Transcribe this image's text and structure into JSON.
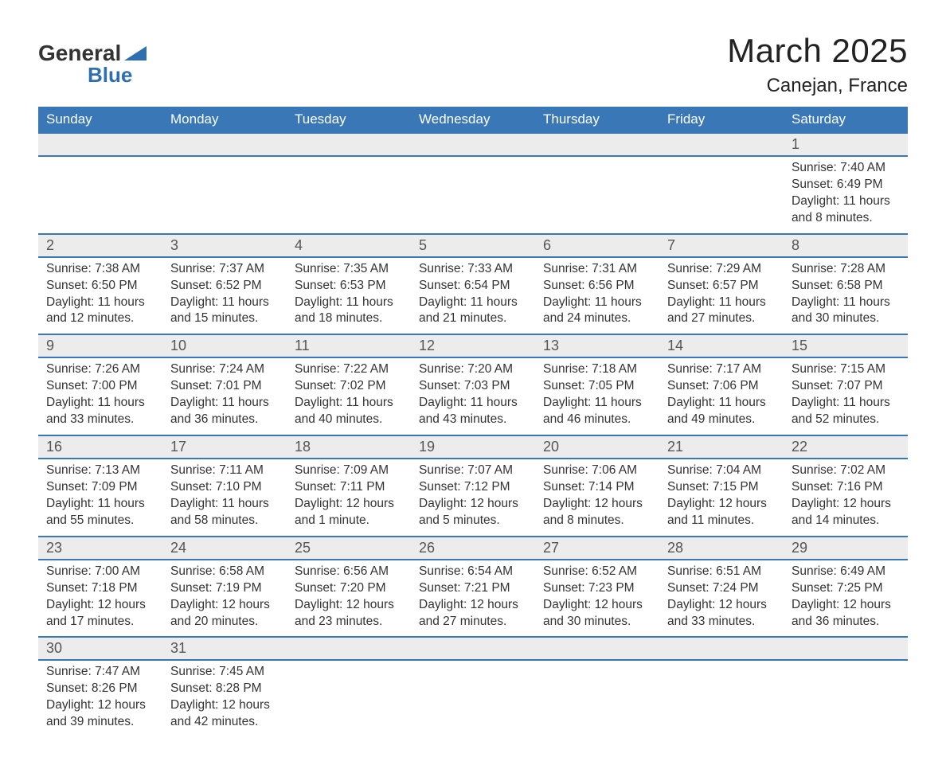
{
  "logo": {
    "text1": "General",
    "text2": "Blue",
    "tri_color": "#2f6fad"
  },
  "title": "March 2025",
  "location": "Canejan, France",
  "colors": {
    "header_bg": "#3a77b6",
    "header_text": "#ffffff",
    "daybar_bg": "#ececec",
    "row_divider": "#3a77b6",
    "body_text": "#333333",
    "daynum_text": "#555555",
    "background": "#ffffff"
  },
  "typography": {
    "title_fontsize": 42,
    "location_fontsize": 24,
    "header_fontsize": 17,
    "daynum_fontsize": 18,
    "body_fontsize": 15.5
  },
  "weekdays": [
    "Sunday",
    "Monday",
    "Tuesday",
    "Wednesday",
    "Thursday",
    "Friday",
    "Saturday"
  ],
  "weeks": [
    [
      null,
      null,
      null,
      null,
      null,
      null,
      {
        "n": "1",
        "sunrise": "7:40 AM",
        "sunset": "6:49 PM",
        "daylight": "11 hours and 8 minutes."
      }
    ],
    [
      {
        "n": "2",
        "sunrise": "7:38 AM",
        "sunset": "6:50 PM",
        "daylight": "11 hours and 12 minutes."
      },
      {
        "n": "3",
        "sunrise": "7:37 AM",
        "sunset": "6:52 PM",
        "daylight": "11 hours and 15 minutes."
      },
      {
        "n": "4",
        "sunrise": "7:35 AM",
        "sunset": "6:53 PM",
        "daylight": "11 hours and 18 minutes."
      },
      {
        "n": "5",
        "sunrise": "7:33 AM",
        "sunset": "6:54 PM",
        "daylight": "11 hours and 21 minutes."
      },
      {
        "n": "6",
        "sunrise": "7:31 AM",
        "sunset": "6:56 PM",
        "daylight": "11 hours and 24 minutes."
      },
      {
        "n": "7",
        "sunrise": "7:29 AM",
        "sunset": "6:57 PM",
        "daylight": "11 hours and 27 minutes."
      },
      {
        "n": "8",
        "sunrise": "7:28 AM",
        "sunset": "6:58 PM",
        "daylight": "11 hours and 30 minutes."
      }
    ],
    [
      {
        "n": "9",
        "sunrise": "7:26 AM",
        "sunset": "7:00 PM",
        "daylight": "11 hours and 33 minutes."
      },
      {
        "n": "10",
        "sunrise": "7:24 AM",
        "sunset": "7:01 PM",
        "daylight": "11 hours and 36 minutes."
      },
      {
        "n": "11",
        "sunrise": "7:22 AM",
        "sunset": "7:02 PM",
        "daylight": "11 hours and 40 minutes."
      },
      {
        "n": "12",
        "sunrise": "7:20 AM",
        "sunset": "7:03 PM",
        "daylight": "11 hours and 43 minutes."
      },
      {
        "n": "13",
        "sunrise": "7:18 AM",
        "sunset": "7:05 PM",
        "daylight": "11 hours and 46 minutes."
      },
      {
        "n": "14",
        "sunrise": "7:17 AM",
        "sunset": "7:06 PM",
        "daylight": "11 hours and 49 minutes."
      },
      {
        "n": "15",
        "sunrise": "7:15 AM",
        "sunset": "7:07 PM",
        "daylight": "11 hours and 52 minutes."
      }
    ],
    [
      {
        "n": "16",
        "sunrise": "7:13 AM",
        "sunset": "7:09 PM",
        "daylight": "11 hours and 55 minutes."
      },
      {
        "n": "17",
        "sunrise": "7:11 AM",
        "sunset": "7:10 PM",
        "daylight": "11 hours and 58 minutes."
      },
      {
        "n": "18",
        "sunrise": "7:09 AM",
        "sunset": "7:11 PM",
        "daylight": "12 hours and 1 minute."
      },
      {
        "n": "19",
        "sunrise": "7:07 AM",
        "sunset": "7:12 PM",
        "daylight": "12 hours and 5 minutes."
      },
      {
        "n": "20",
        "sunrise": "7:06 AM",
        "sunset": "7:14 PM",
        "daylight": "12 hours and 8 minutes."
      },
      {
        "n": "21",
        "sunrise": "7:04 AM",
        "sunset": "7:15 PM",
        "daylight": "12 hours and 11 minutes."
      },
      {
        "n": "22",
        "sunrise": "7:02 AM",
        "sunset": "7:16 PM",
        "daylight": "12 hours and 14 minutes."
      }
    ],
    [
      {
        "n": "23",
        "sunrise": "7:00 AM",
        "sunset": "7:18 PM",
        "daylight": "12 hours and 17 minutes."
      },
      {
        "n": "24",
        "sunrise": "6:58 AM",
        "sunset": "7:19 PM",
        "daylight": "12 hours and 20 minutes."
      },
      {
        "n": "25",
        "sunrise": "6:56 AM",
        "sunset": "7:20 PM",
        "daylight": "12 hours and 23 minutes."
      },
      {
        "n": "26",
        "sunrise": "6:54 AM",
        "sunset": "7:21 PM",
        "daylight": "12 hours and 27 minutes."
      },
      {
        "n": "27",
        "sunrise": "6:52 AM",
        "sunset": "7:23 PM",
        "daylight": "12 hours and 30 minutes."
      },
      {
        "n": "28",
        "sunrise": "6:51 AM",
        "sunset": "7:24 PM",
        "daylight": "12 hours and 33 minutes."
      },
      {
        "n": "29",
        "sunrise": "6:49 AM",
        "sunset": "7:25 PM",
        "daylight": "12 hours and 36 minutes."
      }
    ],
    [
      {
        "n": "30",
        "sunrise": "7:47 AM",
        "sunset": "8:26 PM",
        "daylight": "12 hours and 39 minutes."
      },
      {
        "n": "31",
        "sunrise": "7:45 AM",
        "sunset": "8:28 PM",
        "daylight": "12 hours and 42 minutes."
      },
      null,
      null,
      null,
      null,
      null
    ]
  ],
  "labels": {
    "sunrise": "Sunrise:",
    "sunset": "Sunset:",
    "daylight": "Daylight:"
  }
}
